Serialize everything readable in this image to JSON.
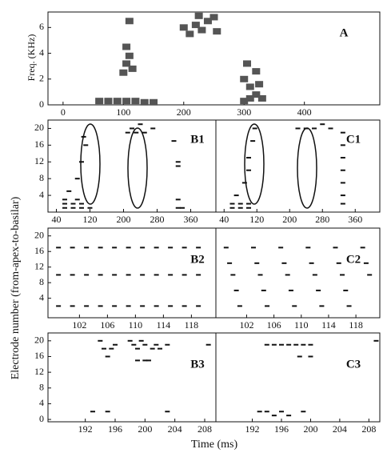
{
  "figure": {
    "y_label": "Electrode number (from-apex-to-basilar)",
    "x_label": "Time (ms)"
  },
  "chart_data": [
    {
      "type": "spectrogram",
      "label": "A",
      "y_label": "Freq. (KHz)",
      "xlim": [
        -25,
        525
      ],
      "ylim": [
        0,
        7.2
      ],
      "xticks": [
        0,
        100,
        200,
        300,
        400
      ],
      "yticks": [
        0,
        2,
        4,
        6
      ],
      "x": [
        60,
        75,
        90,
        105,
        120,
        135,
        150,
        100,
        105,
        110,
        115,
        105,
        110,
        200,
        210,
        220,
        230,
        240,
        250,
        255,
        225,
        300,
        310,
        320,
        330,
        300,
        310,
        320,
        305,
        325
      ],
      "y": [
        0.3,
        0.3,
        0.3,
        0.3,
        0.3,
        0.2,
        0.2,
        2.5,
        3.2,
        3.8,
        2.8,
        4.5,
        6.5,
        6.0,
        5.5,
        6.2,
        5.8,
        6.5,
        6.8,
        5.7,
        6.9,
        0.3,
        0.5,
        0.8,
        0.5,
        2.0,
        1.4,
        2.6,
        3.2,
        1.6
      ]
    },
    {
      "type": "pulses",
      "label": "B1",
      "xlim": [
        20,
        420
      ],
      "ylim": [
        0,
        22
      ],
      "xticks": [
        40,
        120,
        200,
        280,
        360
      ],
      "yticks": [
        4,
        8,
        12,
        16,
        20
      ],
      "x": [
        60,
        80,
        100,
        120,
        60,
        80,
        100,
        60,
        90,
        70,
        90,
        100,
        110,
        105,
        210,
        230,
        250,
        270,
        220,
        240,
        320,
        330,
        330,
        330,
        330,
        340
      ],
      "y": [
        1,
        1,
        1,
        1,
        2,
        2,
        2,
        3,
        3,
        5,
        8,
        12,
        16,
        18,
        19,
        19,
        19,
        20,
        20,
        21,
        17,
        11,
        12,
        3,
        1,
        1
      ]
    },
    {
      "type": "pulses",
      "label": "C1",
      "xlim": [
        20,
        420
      ],
      "ylim": [
        0,
        22
      ],
      "xticks": [
        40,
        120,
        200,
        280,
        360
      ],
      "x": [
        60,
        80,
        100,
        60,
        80,
        100,
        70,
        90,
        100,
        100,
        110,
        115,
        220,
        240,
        260,
        280,
        300,
        330,
        330,
        330,
        330,
        330,
        330,
        330
      ],
      "y": [
        1,
        1,
        1,
        2,
        2,
        2,
        4,
        7,
        10,
        13,
        17,
        20,
        20,
        20,
        20,
        21,
        20,
        19,
        16,
        13,
        10,
        7,
        4,
        2
      ]
    },
    {
      "type": "pulses",
      "label": "B2",
      "xlim": [
        97.5,
        121.5
      ],
      "ylim": [
        -1,
        22
      ],
      "xticks": [
        102,
        106,
        110,
        114,
        118
      ],
      "yticks": [
        4,
        8,
        12,
        16,
        20
      ],
      "x": [
        99,
        101,
        103,
        105,
        107,
        109,
        111,
        113,
        115,
        117,
        119,
        99,
        101,
        103,
        105,
        107,
        109,
        111,
        113,
        115,
        117,
        119,
        99,
        101,
        103,
        105,
        107,
        109,
        111,
        113,
        115,
        117,
        119
      ],
      "y": [
        17,
        17,
        17,
        17,
        17,
        17,
        17,
        17,
        17,
        17,
        17,
        10,
        10,
        10,
        10,
        10,
        10,
        10,
        10,
        10,
        10,
        10,
        2,
        2,
        2,
        2,
        2,
        2,
        2,
        2,
        2,
        2,
        2
      ]
    },
    {
      "type": "pulses",
      "label": "C2",
      "xlim": [
        97.5,
        121.5
      ],
      "ylim": [
        -1,
        22
      ],
      "xticks": [
        102,
        106,
        110,
        114,
        118
      ],
      "x": [
        99,
        99.5,
        100,
        100.5,
        101,
        103,
        103.5,
        104,
        104.5,
        105,
        107,
        107.5,
        108,
        108.5,
        109,
        111,
        111.5,
        112,
        112.5,
        113,
        115,
        115.5,
        116,
        116.5,
        117,
        119,
        119.5,
        120
      ],
      "y": [
        17,
        13,
        10,
        6,
        2,
        17,
        13,
        10,
        6,
        2,
        17,
        13,
        10,
        6,
        2,
        17,
        13,
        10,
        6,
        2,
        17,
        13,
        10,
        6,
        2,
        17,
        13,
        10
      ]
    },
    {
      "type": "pulses",
      "label": "B3",
      "xlim": [
        187,
        209.5
      ],
      "ylim": [
        -0.6,
        22
      ],
      "xticks": [
        192,
        196,
        200,
        204,
        208
      ],
      "yticks": [
        0,
        4,
        8,
        12,
        16,
        20
      ],
      "x": [
        194,
        194.5,
        195,
        195.5,
        196,
        198,
        198.5,
        199,
        199.5,
        200,
        200.5,
        201,
        201.5,
        202,
        203,
        199,
        200,
        208.5,
        193,
        195,
        203
      ],
      "y": [
        20,
        18,
        16,
        18,
        19,
        20,
        19,
        18,
        20,
        19,
        15,
        18,
        19,
        18,
        19,
        15,
        15,
        19,
        2,
        2,
        2
      ]
    },
    {
      "type": "pulses",
      "label": "C3",
      "xlim": [
        187,
        209.5
      ],
      "ylim": [
        -0.6,
        22
      ],
      "xticks": [
        192,
        196,
        200,
        204,
        208
      ],
      "x": [
        194,
        195,
        196,
        197,
        198,
        199,
        200,
        198.5,
        200,
        193,
        194,
        195,
        196,
        197,
        199,
        209
      ],
      "y": [
        19,
        19,
        19,
        19,
        19,
        19,
        19,
        16,
        16,
        2,
        2,
        1,
        2,
        1,
        2,
        20
      ]
    }
  ]
}
